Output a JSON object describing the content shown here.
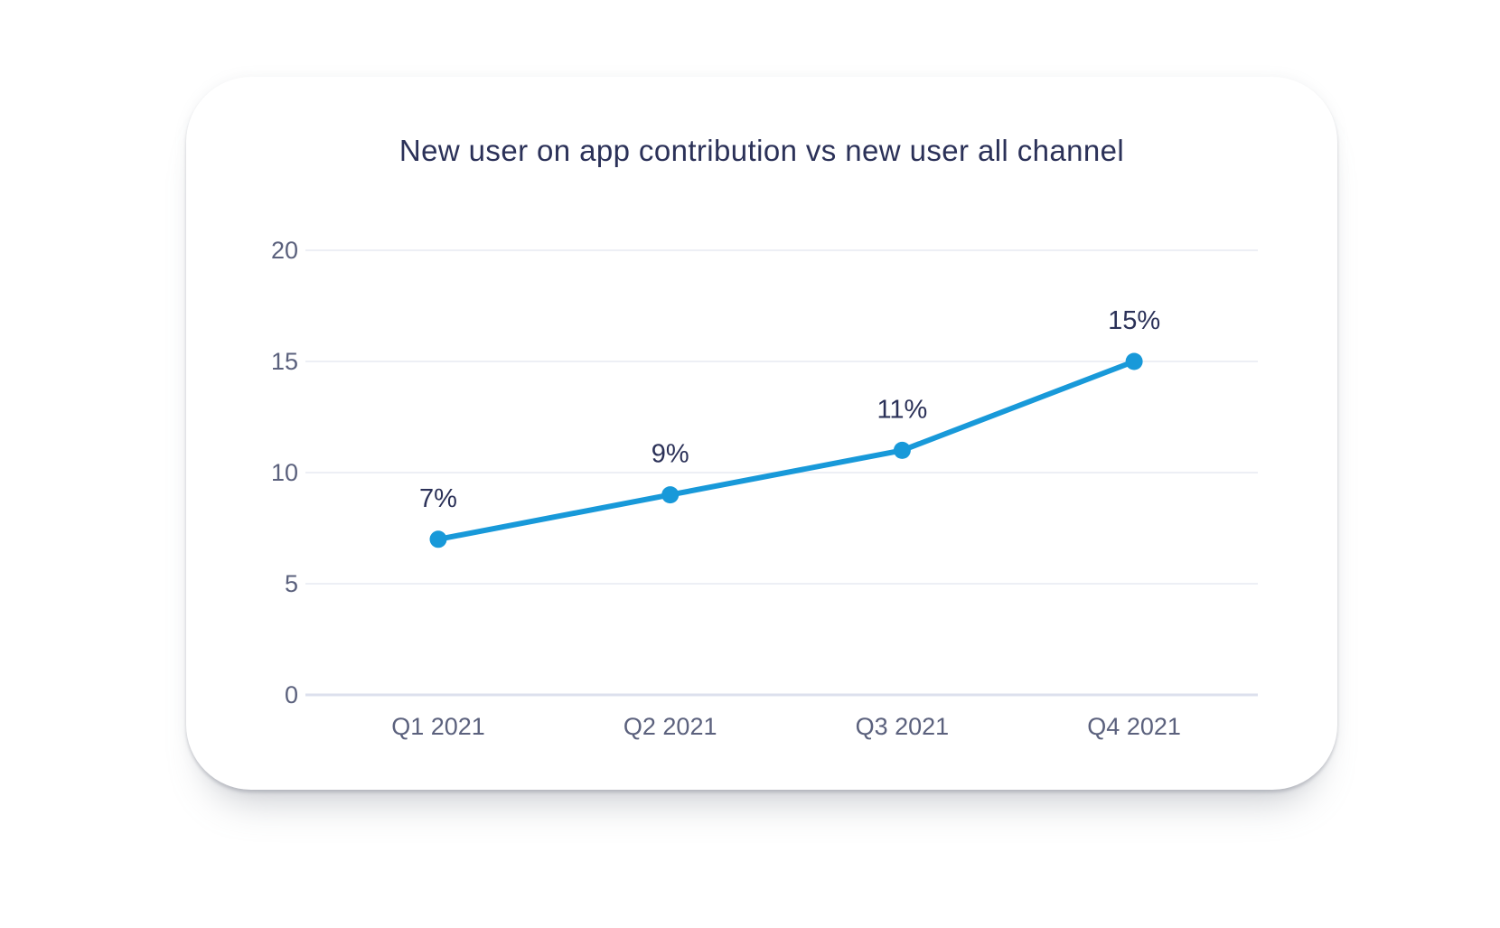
{
  "card": {
    "background": "#ffffff"
  },
  "chart_data": {
    "type": "line",
    "title": "New user on app contribution vs new user all channel",
    "categories": [
      "Q1 2021",
      "Q2 2021",
      "Q3 2021",
      "Q4 2021"
    ],
    "values": [
      7,
      9,
      11,
      15
    ],
    "data_labels": [
      "7%",
      "9%",
      "11%",
      "15%"
    ],
    "y_ticks": [
      0,
      5,
      10,
      15,
      20
    ],
    "ylim": [
      0,
      20
    ],
    "xlabel": "",
    "ylabel": "",
    "grid": "horizontal",
    "legend_position": "none",
    "colors": {
      "line": "#1899d9",
      "point": "#1899d9",
      "title": "#2b3158",
      "data_label": "#2b3158",
      "tick_label": "#5b617d",
      "gridline": "#edeff5",
      "zero_line": "#dce0ed"
    }
  }
}
